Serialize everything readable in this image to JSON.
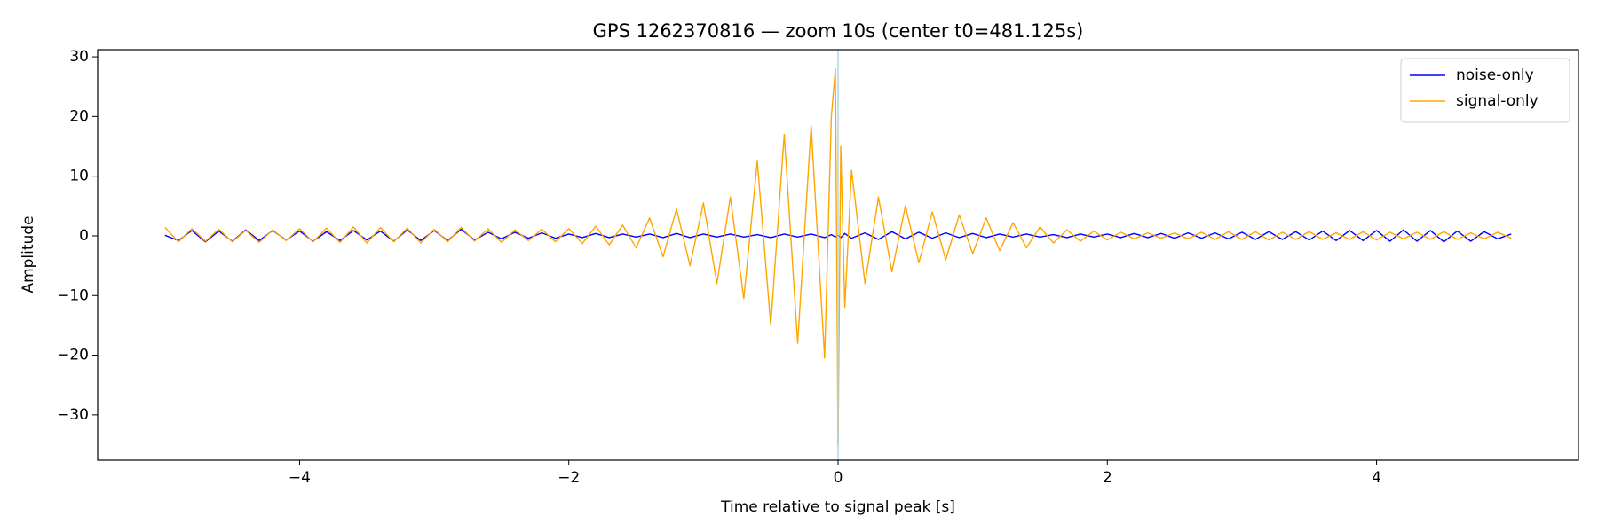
{
  "chart_data": {
    "type": "line",
    "title": "GPS 1262370816 — zoom 10s (center t0=481.125s)",
    "x_label": "Time relative to signal peak [s]",
    "y_label": "Amplitude",
    "x": [
      -5,
      -4.9,
      -4.8,
      -4.7,
      -4.6,
      -4.5,
      -4.4,
      -4.3,
      -4.2,
      -4.1,
      -4,
      -3.9,
      -3.8,
      -3.7,
      -3.6,
      -3.5,
      -3.4,
      -3.3,
      -3.2,
      -3.1,
      -3,
      -2.9,
      -2.8,
      -2.7,
      -2.6,
      -2.5,
      -2.4,
      -2.3,
      -2.2,
      -2.1,
      -2,
      -1.9,
      -1.8,
      -1.7,
      -1.6,
      -1.5,
      -1.4,
      -1.3,
      -1.2,
      -1.1,
      -1,
      -0.9,
      -0.8,
      -0.7,
      -0.6,
      -0.5,
      -0.4,
      -0.3,
      -0.2,
      -0.1,
      -0.05,
      -0.02,
      0,
      0.02,
      0.05,
      0.1,
      0.2,
      0.3,
      0.4,
      0.5,
      0.6,
      0.7,
      0.8,
      0.9,
      1,
      1.1,
      1.2,
      1.3,
      1.4,
      1.5,
      1.6,
      1.7,
      1.8,
      1.9,
      2,
      2.1,
      2.2,
      2.3,
      2.4,
      2.5,
      2.6,
      2.7,
      2.8,
      2.9,
      3,
      3.1,
      3.2,
      3.3,
      3.4,
      3.5,
      3.6,
      3.7,
      3.8,
      3.9,
      4,
      4.1,
      4.2,
      4.3,
      4.4,
      4.5,
      4.6,
      4.7,
      4.8,
      4.9,
      5
    ],
    "series": [
      {
        "name": "noise-only",
        "color": "#0000ff",
        "values": [
          0.1,
          -0.8,
          0.9,
          -1.0,
          0.8,
          -0.9,
          1.0,
          -0.8,
          0.9,
          -0.7,
          0.8,
          -0.9,
          0.7,
          -0.8,
          0.9,
          -0.7,
          0.8,
          -0.9,
          1.0,
          -0.8,
          0.9,
          -0.8,
          1.1,
          -0.7,
          0.6,
          -0.5,
          0.6,
          -0.4,
          0.5,
          -0.4,
          0.3,
          -0.3,
          0.4,
          -0.3,
          0.3,
          -0.2,
          0.3,
          -0.3,
          0.4,
          -0.3,
          0.3,
          -0.2,
          0.3,
          -0.2,
          0.2,
          -0.3,
          0.3,
          -0.2,
          0.3,
          -0.3,
          0.2,
          -0.2,
          0.1,
          -0.3,
          0.4,
          -0.4,
          0.5,
          -0.6,
          0.7,
          -0.5,
          0.6,
          -0.4,
          0.5,
          -0.3,
          0.4,
          -0.3,
          0.3,
          -0.2,
          0.3,
          -0.2,
          0.2,
          -0.3,
          0.3,
          -0.2,
          0.3,
          -0.3,
          0.4,
          -0.3,
          0.4,
          -0.4,
          0.5,
          -0.4,
          0.5,
          -0.5,
          0.6,
          -0.6,
          0.7,
          -0.6,
          0.7,
          -0.7,
          0.8,
          -0.8,
          0.9,
          -0.8,
          0.9,
          -0.9,
          1.0,
          -0.9,
          0.9,
          -1.0,
          0.8,
          -0.9,
          0.7,
          -0.5,
          0.3
        ]
      },
      {
        "name": "signal-only",
        "color": "#ffa500",
        "values": [
          1.4,
          -1.0,
          1.2,
          -0.9,
          1.1,
          -1.0,
          0.9,
          -1.1,
          1.0,
          -0.8,
          1.2,
          -1.0,
          1.3,
          -1.1,
          1.5,
          -1.2,
          1.4,
          -1.0,
          1.3,
          -1.2,
          1.1,
          -1.0,
          1.4,
          -0.9,
          1.2,
          -1.1,
          1.0,
          -0.8,
          1.1,
          -1.0,
          1.2,
          -1.3,
          1.6,
          -1.5,
          1.8,
          -2.0,
          3.0,
          -3.5,
          4.5,
          -5.0,
          5.5,
          -8.0,
          6.5,
          -10.5,
          12.5,
          -15.0,
          17.0,
          -18.0,
          18.5,
          -20.5,
          20,
          28,
          -35,
          15,
          -12,
          11,
          -8,
          6.5,
          -6,
          5,
          -4.5,
          4,
          -4,
          3.5,
          -3,
          3,
          -2.5,
          2.2,
          -2,
          1.5,
          -1.2,
          1.0,
          -0.9,
          0.8,
          -0.7,
          0.6,
          -0.5,
          0.5,
          -0.4,
          0.5,
          -0.5,
          0.6,
          -0.6,
          0.7,
          -0.6,
          0.7,
          -0.7,
          0.6,
          -0.6,
          0.7,
          -0.6,
          0.5,
          -0.6,
          0.7,
          -0.7,
          0.6,
          -0.5,
          0.6,
          -0.6,
          0.7,
          -0.6,
          0.5,
          -0.5,
          0.6,
          -0.4
        ]
      }
    ],
    "vline": {
      "x": 0,
      "color": "#add8e6"
    },
    "xlim": [
      -5.5,
      5.5
    ],
    "ylim": [
      -37.6,
      31.2
    ],
    "xticks": [
      {
        "value": -4,
        "label": "−4"
      },
      {
        "value": -2,
        "label": "−2"
      },
      0,
      2,
      4
    ],
    "yticks": [
      {
        "value": -30,
        "label": "−30"
      },
      {
        "value": -20,
        "label": "−20"
      },
      {
        "value": -10,
        "label": "−10"
      },
      0,
      10,
      20,
      30
    ],
    "legend": "upper right",
    "grid": false
  }
}
